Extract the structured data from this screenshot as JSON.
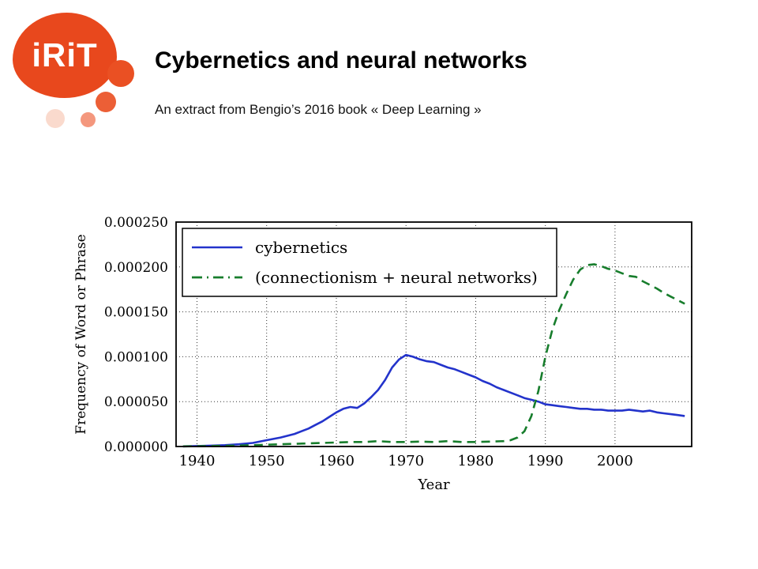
{
  "palette": {
    "brand_orange": "#e8481d",
    "cybernetics_blue": "#2333cb",
    "connectionism_green": "#177d2c"
  },
  "logo": {
    "text": "iRiT"
  },
  "header": {
    "title": "Cybernetics and neural networks",
    "subtitle": "An extract from Bengio’s 2016 book « Deep Learning »"
  },
  "chart_data": {
    "type": "line",
    "title": "",
    "xlabel": "Year",
    "ylabel": "Frequency of Word or Phrase",
    "xlim": [
      1937,
      2011
    ],
    "ylim": [
      0,
      0.00025
    ],
    "x_ticks": [
      1940,
      1950,
      1960,
      1970,
      1980,
      1990,
      2000
    ],
    "y_ticks": [
      {
        "value": 0.0,
        "label": "0.000000"
      },
      {
        "value": 5e-05,
        "label": "0.000050"
      },
      {
        "value": 0.0001,
        "label": "0.000100"
      },
      {
        "value": 0.00015,
        "label": "0.000150"
      },
      {
        "value": 0.0002,
        "label": "0.000200"
      },
      {
        "value": 0.00025,
        "label": "0.000250"
      }
    ],
    "grid": "dotted, both axes",
    "legend_position": "upper left",
    "series": [
      {
        "name": "cybernetics",
        "color": "#2333cb",
        "style": "solid",
        "points": [
          [
            1938,
            2e-07
          ],
          [
            1940,
            5e-07
          ],
          [
            1942,
            1e-06
          ],
          [
            1944,
            1.5e-06
          ],
          [
            1946,
            2.5e-06
          ],
          [
            1948,
            4e-06
          ],
          [
            1950,
            7e-06
          ],
          [
            1952,
            1e-05
          ],
          [
            1954,
            1.4e-05
          ],
          [
            1956,
            2e-05
          ],
          [
            1957,
            2.4e-05
          ],
          [
            1958,
            2.8e-05
          ],
          [
            1959,
            3.3e-05
          ],
          [
            1960,
            3.8e-05
          ],
          [
            1961,
            4.2e-05
          ],
          [
            1962,
            4.4e-05
          ],
          [
            1963,
            4.3e-05
          ],
          [
            1964,
            4.8e-05
          ],
          [
            1965,
            5.5e-05
          ],
          [
            1966,
            6.3e-05
          ],
          [
            1967,
            7.4e-05
          ],
          [
            1968,
            8.8e-05
          ],
          [
            1969,
            9.7e-05
          ],
          [
            1970,
            0.000102
          ],
          [
            1971,
            0.0001
          ],
          [
            1972,
            9.7e-05
          ],
          [
            1973,
            9.5e-05
          ],
          [
            1974,
            9.4e-05
          ],
          [
            1975,
            9.1e-05
          ],
          [
            1976,
            8.8e-05
          ],
          [
            1977,
            8.6e-05
          ],
          [
            1978,
            8.3e-05
          ],
          [
            1979,
            8e-05
          ],
          [
            1980,
            7.7e-05
          ],
          [
            1981,
            7.3e-05
          ],
          [
            1982,
            7e-05
          ],
          [
            1983,
            6.6e-05
          ],
          [
            1984,
            6.3e-05
          ],
          [
            1985,
            6e-05
          ],
          [
            1986,
            5.7e-05
          ],
          [
            1987,
            5.4e-05
          ],
          [
            1988,
            5.2e-05
          ],
          [
            1989,
            5e-05
          ],
          [
            1990,
            4.7e-05
          ],
          [
            1991,
            4.6e-05
          ],
          [
            1992,
            4.5e-05
          ],
          [
            1993,
            4.4e-05
          ],
          [
            1994,
            4.3e-05
          ],
          [
            1995,
            4.2e-05
          ],
          [
            1996,
            4.2e-05
          ],
          [
            1997,
            4.1e-05
          ],
          [
            1998,
            4.1e-05
          ],
          [
            1999,
            4e-05
          ],
          [
            2000,
            4e-05
          ],
          [
            2001,
            4e-05
          ],
          [
            2002,
            4.1e-05
          ],
          [
            2003,
            4e-05
          ],
          [
            2004,
            3.9e-05
          ],
          [
            2005,
            4e-05
          ],
          [
            2006,
            3.8e-05
          ],
          [
            2007,
            3.7e-05
          ],
          [
            2008,
            3.6e-05
          ],
          [
            2009,
            3.5e-05
          ],
          [
            2010,
            3.4e-05
          ]
        ]
      },
      {
        "name": "(connectionism + neural networks)",
        "color": "#177d2c",
        "style": "dashed",
        "legend_style": "dash-dot",
        "points": [
          [
            1938,
            2e-07
          ],
          [
            1942,
            5e-07
          ],
          [
            1946,
            1e-06
          ],
          [
            1950,
            2e-06
          ],
          [
            1954,
            3e-06
          ],
          [
            1958,
            4e-06
          ],
          [
            1960,
            4.5e-06
          ],
          [
            1962,
            5e-06
          ],
          [
            1964,
            5e-06
          ],
          [
            1966,
            6e-06
          ],
          [
            1968,
            5e-06
          ],
          [
            1970,
            5e-06
          ],
          [
            1972,
            5.5e-06
          ],
          [
            1974,
            5e-06
          ],
          [
            1976,
            6e-06
          ],
          [
            1978,
            5e-06
          ],
          [
            1980,
            5e-06
          ],
          [
            1982,
            5.5e-06
          ],
          [
            1984,
            6e-06
          ],
          [
            1985,
            7e-06
          ],
          [
            1986,
            1e-05
          ],
          [
            1987,
            1.7e-05
          ],
          [
            1988,
            3.4e-05
          ],
          [
            1989,
            6.2e-05
          ],
          [
            1990,
            0.0001
          ],
          [
            1991,
            0.00013
          ],
          [
            1992,
            0.000152
          ],
          [
            1993,
            0.00017
          ],
          [
            1994,
            0.000186
          ],
          [
            1995,
            0.000197
          ],
          [
            1996,
            0.000202
          ],
          [
            1997,
            0.000203
          ],
          [
            1998,
            0.000201
          ],
          [
            1999,
            0.000198
          ],
          [
            2000,
            0.000196
          ],
          [
            2001,
            0.000193
          ],
          [
            2002,
            0.00019
          ],
          [
            2003,
            0.000189
          ],
          [
            2004,
            0.000184
          ],
          [
            2005,
            0.00018
          ],
          [
            2006,
            0.000176
          ],
          [
            2007,
            0.000171
          ],
          [
            2008,
            0.000167
          ],
          [
            2009,
            0.000163
          ],
          [
            2010,
            0.000159
          ]
        ]
      }
    ]
  }
}
